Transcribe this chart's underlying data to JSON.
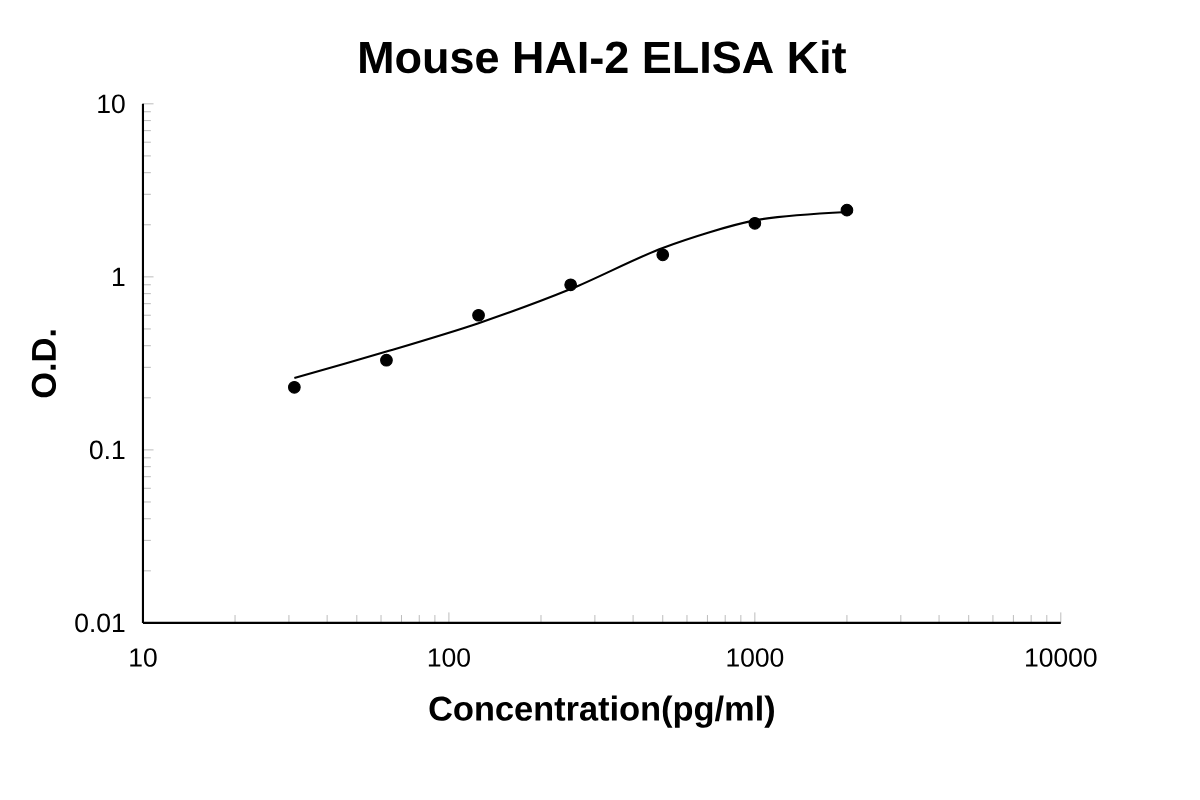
{
  "chart_data": {
    "type": "scatter",
    "title": "Mouse HAI-2 ELISA Kit",
    "xlabel": "Concentration(pg/ml)",
    "ylabel": "O.D.",
    "log": "xy",
    "xlim": [
      10,
      10000
    ],
    "xticks": [
      10,
      100,
      1000,
      10000
    ],
    "ylim": [
      0.01,
      10
    ],
    "yticks": [
      0.01,
      0.1,
      1,
      10
    ],
    "grid": false,
    "marker": "circle",
    "series": [
      {
        "color": "#000000",
        "x": [
          31.25,
          62.5,
          125,
          250,
          500,
          1000,
          2000
        ],
        "values": [
          0.23,
          0.33,
          0.6,
          0.9,
          1.34,
          2.04,
          2.43
        ]
      },
      {
        "type": "line",
        "color": "#000000",
        "marker": "none",
        "line_style": "solid",
        "x": [
          31.25,
          62.5,
          125,
          250,
          500,
          1000,
          2000
        ],
        "values": [
          0.26,
          0.37,
          0.54,
          0.85,
          1.47,
          2.12,
          2.37
        ]
      }
    ]
  }
}
